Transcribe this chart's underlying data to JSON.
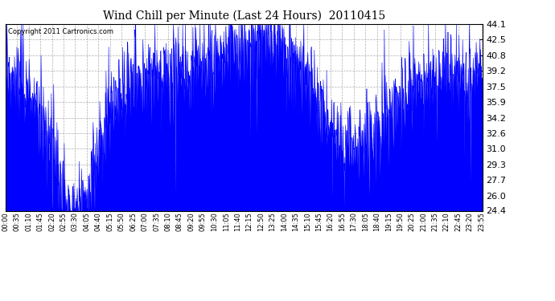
{
  "title": "Wind Chill per Minute (Last 24 Hours)  20110415",
  "copyright_text": "Copyright 2011 Cartronics.com",
  "y_ticks": [
    24.4,
    26.0,
    27.7,
    29.3,
    31.0,
    32.6,
    34.2,
    35.9,
    37.5,
    39.2,
    40.8,
    42.5,
    44.1
  ],
  "y_min": 24.4,
  "y_max": 44.1,
  "line_color": "#0000ff",
  "bg_color": "#ffffff",
  "grid_color": "#999999",
  "title_color": "#000000",
  "title_fontsize": 10,
  "x_tick_labels": [
    "00:00",
    "00:35",
    "01:10",
    "01:45",
    "02:20",
    "02:55",
    "03:30",
    "04:05",
    "04:40",
    "05:15",
    "05:50",
    "06:25",
    "07:00",
    "07:35",
    "08:10",
    "08:45",
    "09:20",
    "09:55",
    "10:30",
    "11:05",
    "11:40",
    "12:15",
    "12:50",
    "13:25",
    "14:00",
    "14:35",
    "15:10",
    "15:45",
    "16:20",
    "16:55",
    "17:30",
    "18:05",
    "18:40",
    "19:15",
    "19:50",
    "20:25",
    "21:00",
    "21:35",
    "22:10",
    "22:45",
    "23:20",
    "23:55"
  ]
}
